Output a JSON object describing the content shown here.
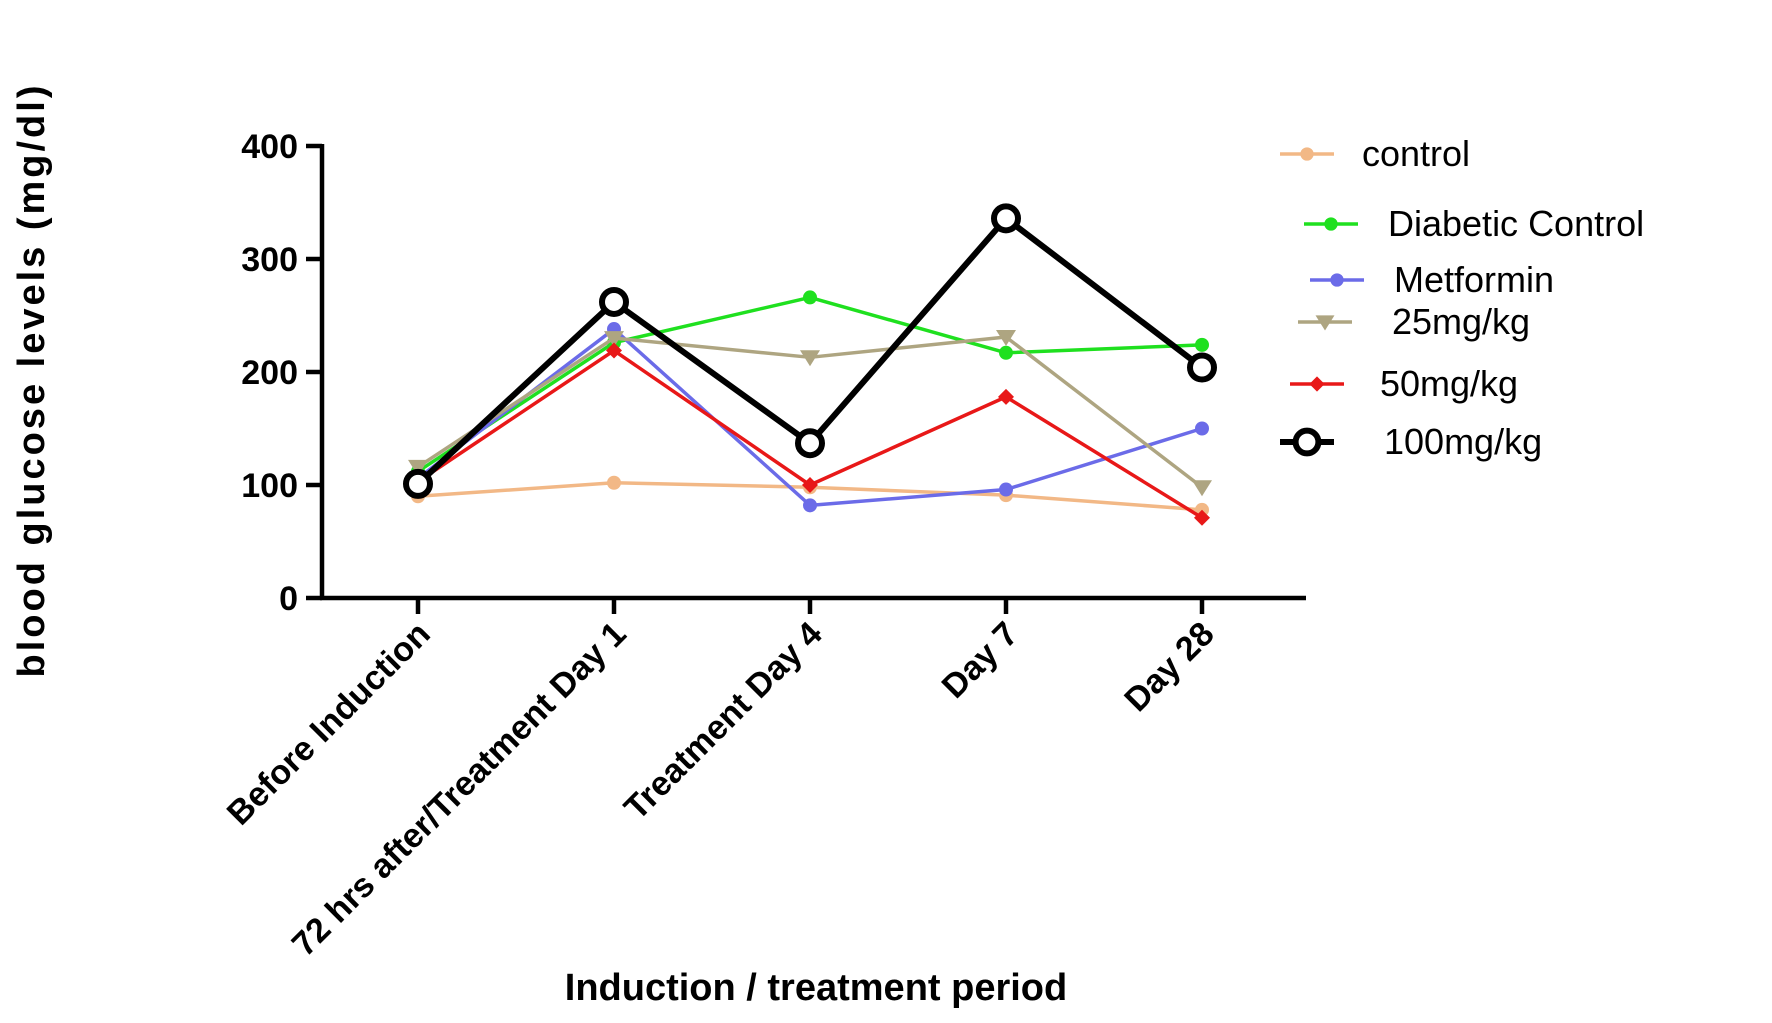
{
  "chart_data": {
    "type": "line",
    "title": "",
    "xlabel": "Induction / treatment period",
    "ylabel": "blood glucose levels (mg/dl)",
    "categories": [
      "Before Induction",
      "72 hrs after/Treatment Day 1",
      "Treatment Day 4",
      "Day 7",
      "Day 28"
    ],
    "ylim": [
      0,
      400
    ],
    "yticks": [
      "0",
      "100",
      "200",
      "300",
      "400"
    ],
    "grid": false,
    "legend_position": "right",
    "series": [
      {
        "name": "control",
        "color": "#F2B886",
        "marker": "circle",
        "values": [
          90,
          102,
          98,
          91,
          78
        ]
      },
      {
        "name": "Diabetic Control",
        "color": "#1FE01F",
        "marker": "circle",
        "values": [
          112,
          226,
          266,
          217,
          224
        ]
      },
      {
        "name": "Metformin",
        "color": "#6B6BE8",
        "marker": "circle",
        "values": [
          106,
          238,
          82,
          96,
          150
        ]
      },
      {
        "name": "25mg/kg",
        "color": "#AEA581",
        "marker": "triangle-down",
        "values": [
          116,
          230,
          213,
          231,
          98
        ]
      },
      {
        "name": "50mg/kg",
        "color": "#E81818",
        "marker": "diamond",
        "values": [
          103,
          219,
          100,
          178,
          71
        ]
      },
      {
        "name": "100mg/kg",
        "color": "#000000",
        "marker": "open-circle",
        "values": [
          101,
          262,
          137,
          336,
          204
        ]
      }
    ]
  }
}
